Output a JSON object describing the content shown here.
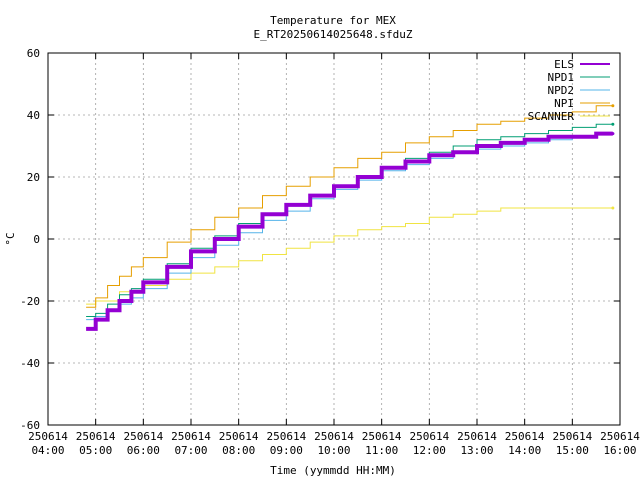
{
  "chart_data": {
    "type": "line",
    "title": "Temperature for MEX",
    "subtitle": "E_RT20250614025648.sfduZ",
    "xlabel": "Time (yymmdd HH:MM)",
    "ylabel": "°C",
    "ylim": [
      -60,
      60
    ],
    "yticks": [
      -60,
      -40,
      -20,
      0,
      20,
      40,
      60
    ],
    "xlim": [
      4.0,
      16.0
    ],
    "xticks": [
      {
        "value": 4,
        "date": "250614",
        "time": "04:00"
      },
      {
        "value": 5,
        "date": "250614",
        "time": "05:00"
      },
      {
        "value": 6,
        "date": "250614",
        "time": "06:00"
      },
      {
        "value": 7,
        "date": "250614",
        "time": "07:00"
      },
      {
        "value": 8,
        "date": "250614",
        "time": "08:00"
      },
      {
        "value": 9,
        "date": "250614",
        "time": "09:00"
      },
      {
        "value": 10,
        "date": "250614",
        "time": "10:00"
      },
      {
        "value": 11,
        "date": "250614",
        "time": "11:00"
      },
      {
        "value": 12,
        "date": "250614",
        "time": "12:00"
      },
      {
        "value": 13,
        "date": "250614",
        "time": "13:00"
      },
      {
        "value": 14,
        "date": "250614",
        "time": "14:00"
      },
      {
        "value": 15,
        "date": "250614",
        "time": "15:00"
      },
      {
        "value": 16,
        "date": "250614",
        "time": "16:00"
      }
    ],
    "grid": true,
    "legend_position": "top-right",
    "series": [
      {
        "name": "ELS",
        "color": "#9400d3",
        "width": 4,
        "x": [
          4.8,
          5.0,
          5.25,
          5.5,
          5.75,
          6.0,
          6.5,
          7.0,
          7.5,
          8.0,
          8.5,
          9.0,
          9.5,
          10.0,
          10.5,
          11.0,
          11.5,
          12.0,
          12.5,
          13.0,
          13.5,
          14.0,
          14.5,
          15.0,
          15.5,
          15.85
        ],
        "y": [
          -29,
          -26,
          -23,
          -20,
          -17,
          -14,
          -9,
          -4,
          0,
          4,
          8,
          11,
          14,
          17,
          20,
          23,
          25,
          27,
          28,
          30,
          31,
          32,
          33,
          33,
          34,
          34
        ]
      },
      {
        "name": "NPD1",
        "color": "#009e73",
        "width": 1,
        "x": [
          4.8,
          5.0,
          5.25,
          5.5,
          5.75,
          6.0,
          6.5,
          7.0,
          7.5,
          8.0,
          8.5,
          9.0,
          9.5,
          10.0,
          10.5,
          11.0,
          11.5,
          12.0,
          12.5,
          13.0,
          13.5,
          14.0,
          14.5,
          15.0,
          15.5,
          15.85
        ],
        "y": [
          -25,
          -24,
          -21,
          -18,
          -16,
          -13,
          -8,
          -3,
          1,
          5,
          8,
          11,
          14,
          17,
          20,
          23,
          26,
          28,
          30,
          32,
          33,
          34,
          35,
          36,
          37,
          37
        ]
      },
      {
        "name": "NPD2",
        "color": "#56b4e9",
        "width": 1,
        "x": [
          4.8,
          5.0,
          5.25,
          5.5,
          5.75,
          6.0,
          6.5,
          7.0,
          7.5,
          8.0,
          8.5,
          9.0,
          9.5,
          10.0,
          10.5,
          11.0,
          11.5,
          12.0,
          12.5,
          13.0,
          13.5,
          14.0,
          14.5,
          15.0,
          15.5,
          15.85
        ],
        "y": [
          -26,
          -25,
          -23,
          -21,
          -19,
          -16,
          -11,
          -6,
          -2,
          2,
          6,
          9,
          13,
          16,
          19,
          22,
          24,
          26,
          28,
          29,
          30,
          31,
          32,
          33,
          34,
          34
        ]
      },
      {
        "name": "NPI",
        "color": "#e69f00",
        "width": 1,
        "x": [
          4.8,
          5.0,
          5.25,
          5.5,
          5.75,
          6.0,
          6.5,
          7.0,
          7.5,
          8.0,
          8.5,
          9.0,
          9.5,
          10.0,
          10.5,
          11.0,
          11.5,
          12.0,
          12.5,
          13.0,
          13.5,
          14.0,
          14.5,
          15.0,
          15.5,
          15.85
        ],
        "y": [
          -22,
          -19,
          -15,
          -12,
          -9,
          -6,
          -1,
          3,
          7,
          10,
          14,
          17,
          20,
          23,
          26,
          28,
          31,
          33,
          35,
          37,
          38,
          39,
          40,
          41,
          43,
          43
        ]
      },
      {
        "name": "SCANNER",
        "color": "#f0e442",
        "width": 1,
        "x": [
          4.8,
          5.0,
          5.5,
          6.0,
          6.5,
          7.0,
          7.5,
          8.0,
          8.5,
          9.0,
          9.5,
          10.0,
          10.5,
          11.0,
          11.5,
          12.0,
          12.5,
          13.0,
          13.5,
          14.0,
          14.5,
          15.0,
          15.5,
          15.85
        ],
        "y": [
          -21,
          -20,
          -17,
          -15,
          -13,
          -11,
          -9,
          -7,
          -5,
          -3,
          -1,
          1,
          3,
          4,
          5,
          7,
          8,
          9,
          10,
          10,
          10,
          10,
          10,
          10
        ]
      }
    ]
  }
}
